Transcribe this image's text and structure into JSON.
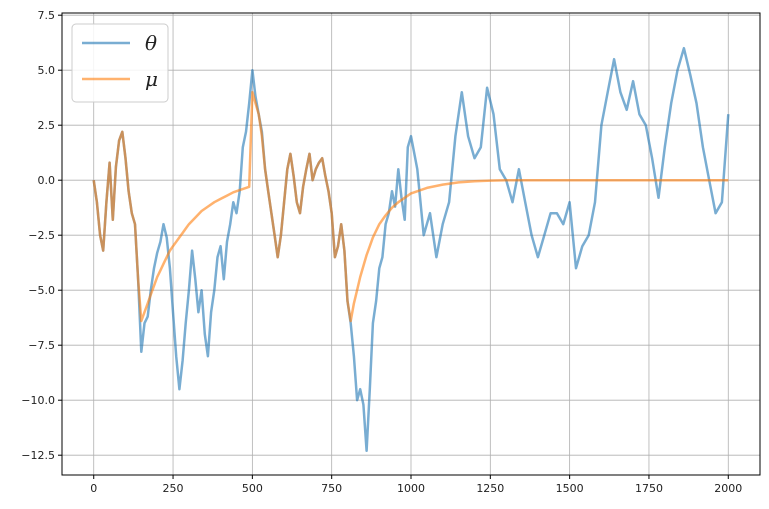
{
  "chart_data": {
    "type": "line",
    "title": "",
    "xlabel": "",
    "ylabel": "",
    "xlim": [
      -100,
      2100
    ],
    "ylim": [
      -13.4,
      7.6
    ],
    "xticks": [
      0,
      250,
      500,
      750,
      1000,
      1250,
      1500,
      1750,
      2000
    ],
    "xtick_labels": [
      "0",
      "250",
      "500",
      "750",
      "1000",
      "1250",
      "1500",
      "1750",
      "2000"
    ],
    "yticks": [
      -12.5,
      -10.0,
      -7.5,
      -5.0,
      -2.5,
      0.0,
      2.5,
      5.0,
      7.5
    ],
    "ytick_labels": [
      "−12.5",
      "−10.0",
      "−7.5",
      "−5.0",
      "−2.5",
      "0.0",
      "2.5",
      "5.0",
      "7.5"
    ],
    "grid": true,
    "legend_position": "top-left",
    "series": [
      {
        "name": "θ",
        "color": "#1f77b4",
        "alpha": 0.6,
        "x": [
          0,
          10,
          20,
          30,
          40,
          50,
          60,
          70,
          80,
          90,
          100,
          110,
          120,
          130,
          140,
          150,
          160,
          170,
          180,
          190,
          200,
          210,
          220,
          230,
          240,
          250,
          260,
          270,
          280,
          290,
          300,
          310,
          320,
          330,
          340,
          350,
          360,
          370,
          380,
          390,
          400,
          410,
          420,
          430,
          440,
          450,
          460,
          470,
          480,
          490,
          500,
          510,
          520,
          530,
          540,
          550,
          560,
          570,
          580,
          590,
          600,
          610,
          620,
          630,
          640,
          650,
          660,
          670,
          680,
          690,
          700,
          710,
          720,
          730,
          740,
          750,
          760,
          770,
          780,
          790,
          800,
          810,
          820,
          830,
          840,
          850,
          860,
          870,
          880,
          890,
          900,
          910,
          920,
          930,
          940,
          950,
          960,
          970,
          980,
          990,
          1000,
          1020,
          1040,
          1060,
          1080,
          1100,
          1120,
          1140,
          1160,
          1180,
          1200,
          1220,
          1240,
          1260,
          1280,
          1300,
          1320,
          1340,
          1360,
          1380,
          1400,
          1420,
          1440,
          1460,
          1480,
          1500,
          1520,
          1540,
          1560,
          1580,
          1600,
          1620,
          1640,
          1660,
          1680,
          1700,
          1720,
          1740,
          1760,
          1780,
          1800,
          1820,
          1840,
          1860,
          1880,
          1900,
          1920,
          1940,
          1960,
          1980,
          2000
        ],
        "y": [
          0.0,
          -1.0,
          -2.5,
          -3.2,
          -1.0,
          0.8,
          -1.8,
          0.6,
          1.8,
          2.2,
          1.0,
          -0.5,
          -1.5,
          -2.0,
          -4.5,
          -7.8,
          -6.5,
          -6.2,
          -5.0,
          -4.0,
          -3.3,
          -2.8,
          -2.0,
          -2.6,
          -4.0,
          -6.0,
          -8.0,
          -9.5,
          -8.2,
          -6.5,
          -5.0,
          -3.2,
          -4.5,
          -6.0,
          -5.0,
          -7.0,
          -8.0,
          -6.0,
          -5.0,
          -3.5,
          -3.0,
          -4.5,
          -2.8,
          -2.0,
          -1.0,
          -1.5,
          -0.5,
          1.5,
          2.2,
          3.5,
          5.0,
          3.8,
          3.0,
          2.2,
          0.5,
          -0.5,
          -1.5,
          -2.5,
          -3.5,
          -2.5,
          -1.0,
          0.5,
          1.2,
          0.2,
          -1.0,
          -1.5,
          -0.3,
          0.5,
          1.2,
          0.0,
          0.5,
          0.8,
          1.0,
          0.2,
          -0.5,
          -1.5,
          -3.5,
          -3.0,
          -2.0,
          -3.2,
          -5.5,
          -6.5,
          -8.0,
          -10.0,
          -9.5,
          -10.2,
          -12.3,
          -9.5,
          -6.5,
          -5.5,
          -4.0,
          -3.5,
          -2.0,
          -1.5,
          -0.5,
          -1.2,
          0.5,
          -0.8,
          -1.8,
          1.5,
          2.0,
          0.5,
          -2.5,
          -1.5,
          -3.5,
          -2.0,
          -1.0,
          2.0,
          4.0,
          2.0,
          1.0,
          1.5,
          4.2,
          3.0,
          0.5,
          0.0,
          -1.0,
          0.5,
          -1.0,
          -2.5,
          -3.5,
          -2.5,
          -1.5,
          -1.5,
          -2.0,
          -1.0,
          -4.0,
          -3.0,
          -2.5,
          -1.0,
          2.5,
          4.0,
          5.5,
          4.0,
          3.2,
          4.5,
          3.0,
          2.5,
          1.0,
          -0.8,
          1.5,
          3.5,
          5.0,
          6.0,
          4.8,
          3.5,
          1.5,
          0.0,
          -1.5,
          -1.0,
          3.0
        ]
      },
      {
        "name": "μ",
        "color": "#ff7f0e",
        "alpha": 0.6,
        "x": [
          0,
          10,
          20,
          30,
          40,
          50,
          60,
          70,
          80,
          90,
          100,
          110,
          120,
          130,
          140,
          150,
          160,
          170,
          180,
          190,
          200,
          210,
          220,
          230,
          240,
          250,
          260,
          270,
          280,
          290,
          300,
          320,
          340,
          360,
          380,
          400,
          420,
          440,
          460,
          480,
          490,
          500,
          510,
          520,
          530,
          540,
          550,
          560,
          570,
          580,
          590,
          600,
          610,
          620,
          630,
          640,
          650,
          660,
          670,
          680,
          690,
          700,
          710,
          720,
          730,
          740,
          750,
          760,
          770,
          780,
          790,
          800,
          810,
          820,
          830,
          840,
          850,
          860,
          870,
          880,
          890,
          900,
          920,
          940,
          960,
          980,
          1000,
          1050,
          1100,
          1150,
          1200,
          1250,
          1300,
          1400,
          1500,
          1600,
          1700,
          1800,
          1900,
          2000
        ],
        "y": [
          0.0,
          -1.0,
          -2.5,
          -3.2,
          -1.0,
          0.8,
          -1.8,
          0.6,
          1.8,
          2.2,
          1.0,
          -0.5,
          -1.5,
          -2.0,
          -4.5,
          -6.4,
          -6.0,
          -5.6,
          -5.2,
          -4.8,
          -4.4,
          -4.1,
          -3.8,
          -3.5,
          -3.2,
          -3.0,
          -2.8,
          -2.6,
          -2.4,
          -2.2,
          -2.0,
          -1.7,
          -1.4,
          -1.2,
          -1.0,
          -0.85,
          -0.7,
          -0.55,
          -0.45,
          -0.35,
          -0.3,
          4.0,
          3.5,
          3.0,
          2.0,
          0.5,
          -0.5,
          -1.5,
          -2.5,
          -3.5,
          -2.5,
          -1.0,
          0.5,
          1.2,
          0.2,
          -1.0,
          -1.5,
          -0.3,
          0.5,
          1.2,
          0.0,
          0.5,
          0.8,
          1.0,
          0.2,
          -0.5,
          -1.5,
          -3.5,
          -3.0,
          -2.0,
          -3.2,
          -5.5,
          -6.4,
          -5.6,
          -5.0,
          -4.4,
          -3.9,
          -3.4,
          -3.0,
          -2.6,
          -2.3,
          -2.0,
          -1.6,
          -1.25,
          -1.0,
          -0.8,
          -0.6,
          -0.35,
          -0.2,
          -0.1,
          -0.05,
          -0.02,
          0.0,
          0.0,
          0.0,
          0.0,
          0.0,
          0.0,
          0.0,
          0.0
        ]
      }
    ]
  }
}
